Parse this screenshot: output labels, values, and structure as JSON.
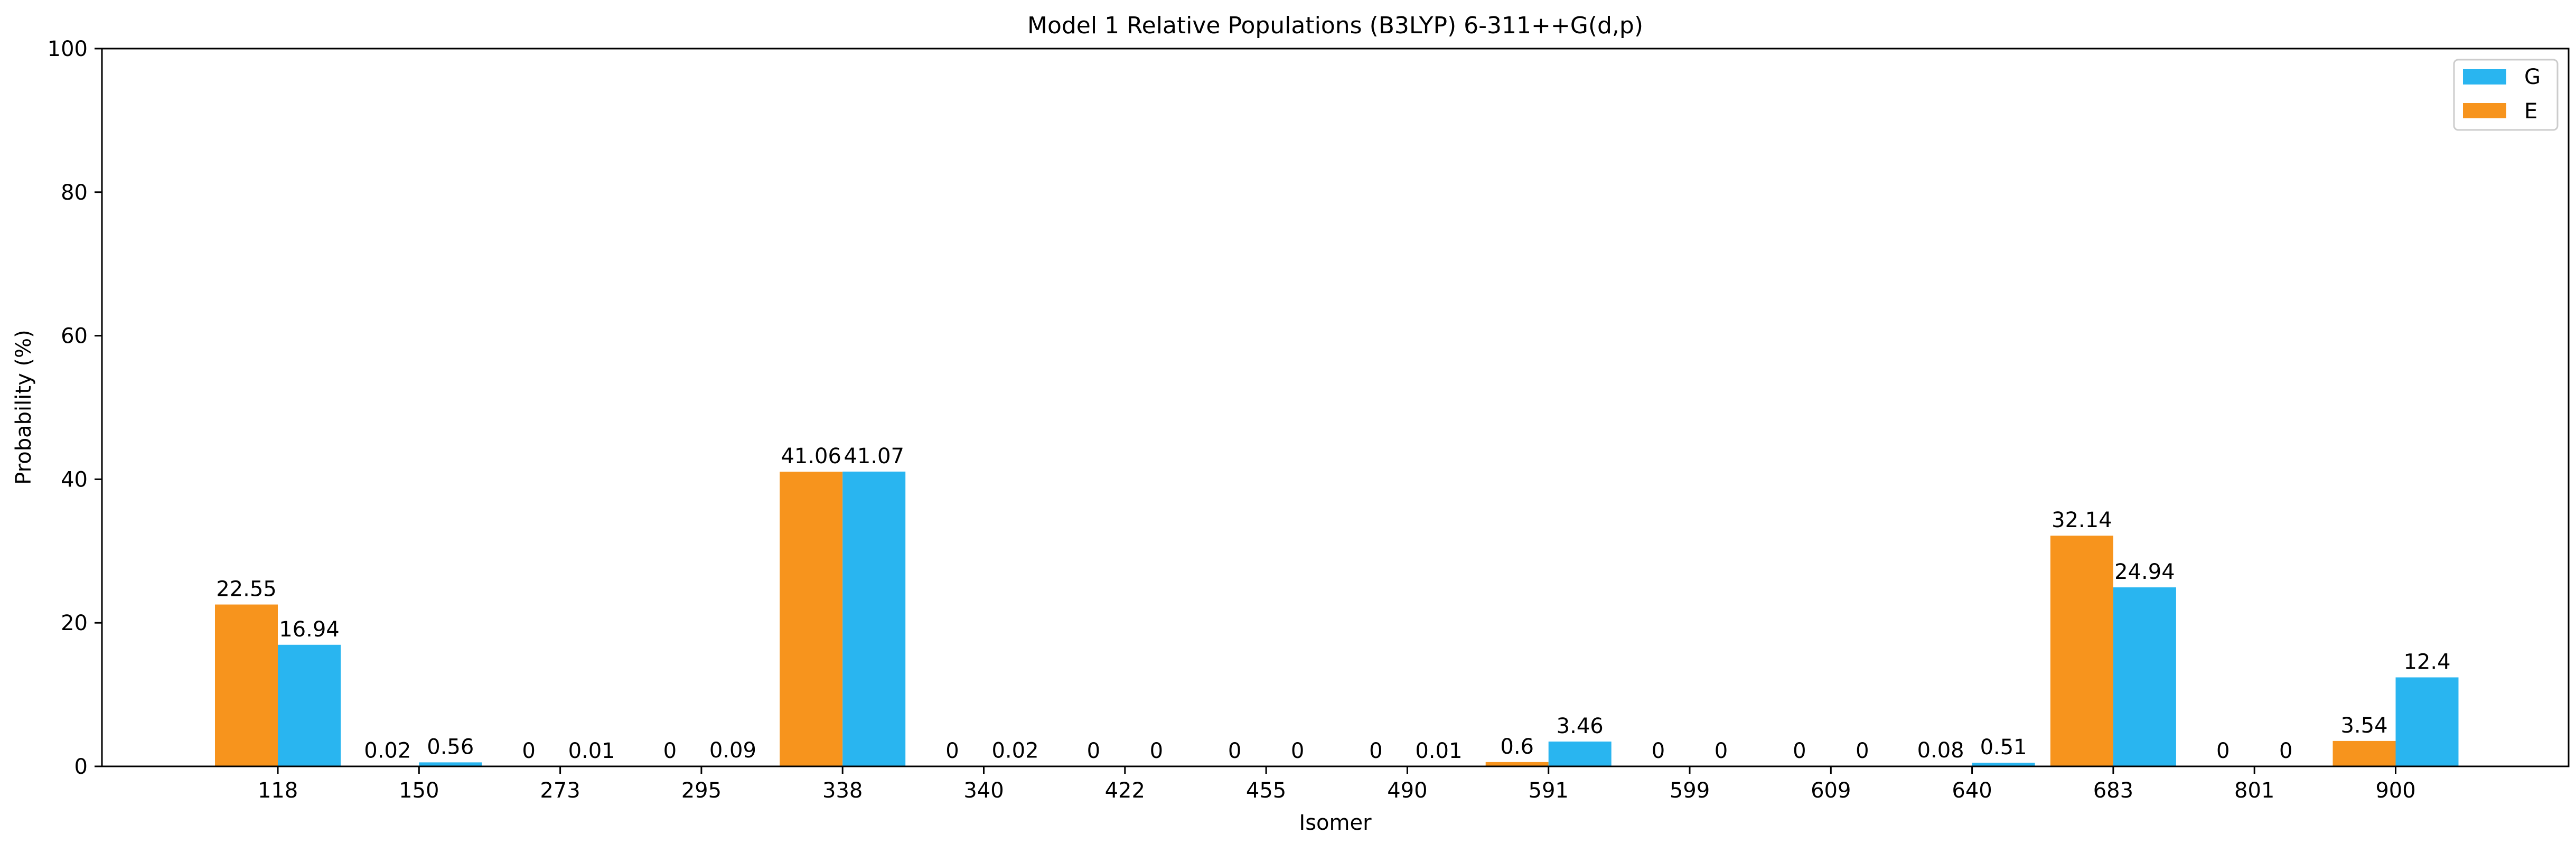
{
  "chart_data": {
    "type": "bar",
    "title": "Model 1 Relative Populations (B3LYP) 6-311++G(d,p)",
    "xlabel": "Isomer",
    "ylabel": "Probability (%)",
    "ylim": [
      0,
      100
    ],
    "yticks": [
      0,
      20,
      40,
      60,
      80,
      100
    ],
    "grid": false,
    "legend_position": "top-right",
    "categories": [
      "118",
      "150",
      "273",
      "295",
      "338",
      "340",
      "422",
      "455",
      "490",
      "591",
      "599",
      "609",
      "640",
      "683",
      "801",
      "900"
    ],
    "series": [
      {
        "name": "E",
        "color": "#F7941D",
        "values": [
          22.55,
          0.02,
          0,
          0,
          41.06,
          0,
          0,
          0,
          0,
          0.6,
          0,
          0,
          0.08,
          32.14,
          0,
          3.54
        ],
        "labels": [
          "22.55",
          "0.02",
          "0",
          "0",
          "41.06",
          "0",
          "0",
          "0",
          "0",
          "0.6",
          "0",
          "0",
          "0.08",
          "32.14",
          "0",
          "3.54"
        ]
      },
      {
        "name": "G",
        "color": "#29B5F0",
        "values": [
          16.94,
          0.56,
          0.01,
          0.09,
          41.07,
          0.02,
          0,
          0,
          0.01,
          3.46,
          0,
          0,
          0.51,
          24.94,
          0,
          12.4
        ],
        "labels": [
          "16.94",
          "0.56",
          "0.01",
          "0.09",
          "41.07",
          "0.02",
          "0",
          "0",
          "0.01",
          "3.46",
          "0",
          "0",
          "0.51",
          "24.94",
          "0",
          "12.4"
        ]
      }
    ],
    "legend_order": [
      "G",
      "E"
    ]
  }
}
